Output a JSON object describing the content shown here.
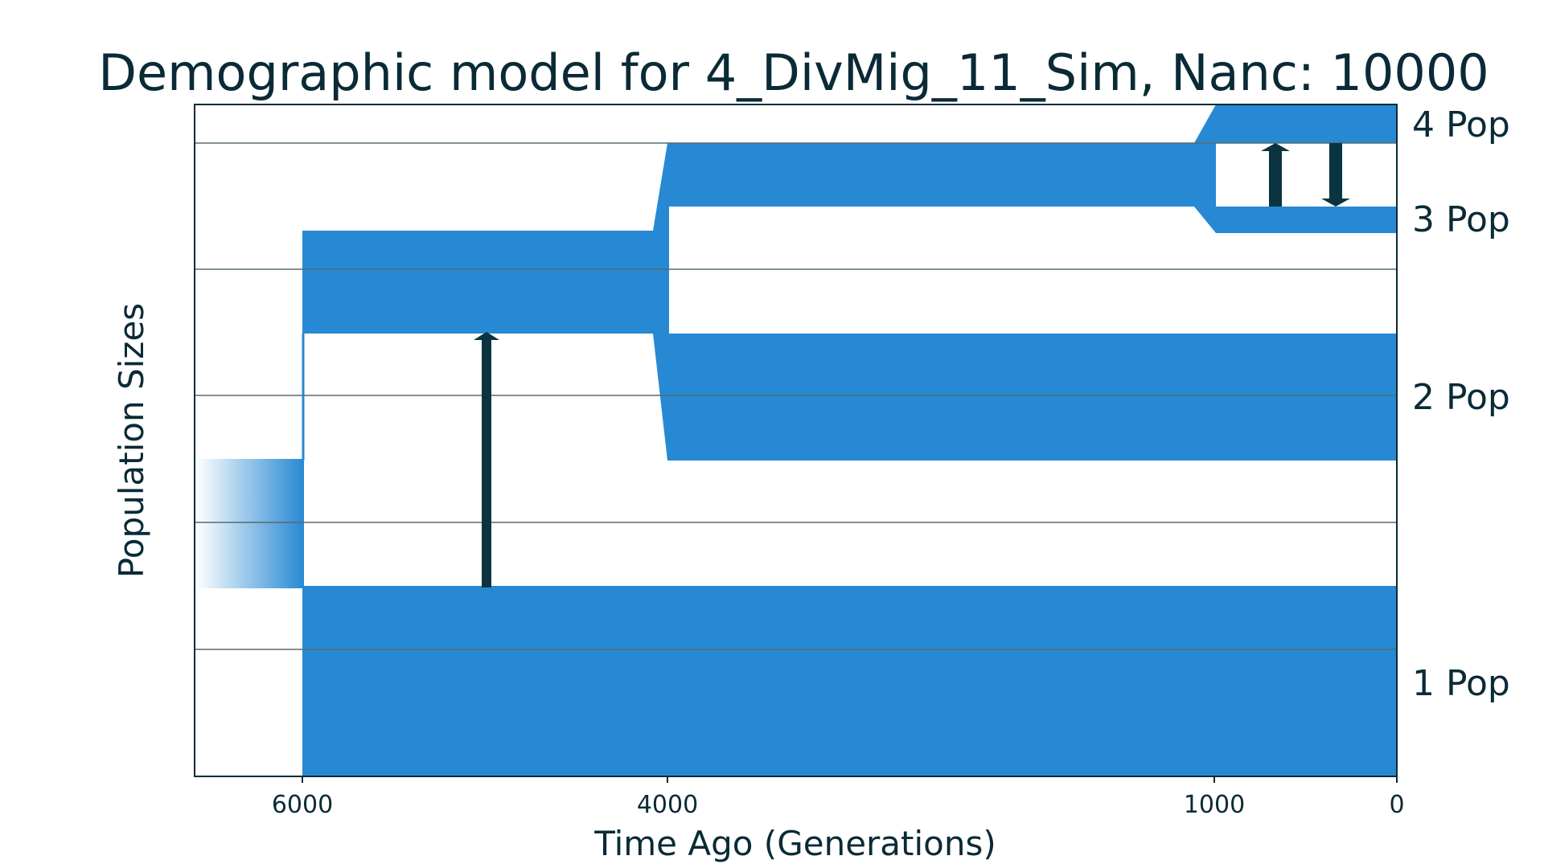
{
  "chart_data": {
    "type": "demographic-model",
    "title": "Demographic model for 4_DivMig_11_Sim, Nanc: 10000",
    "xlabel": "Time Ago (Generations)",
    "ylabel": "Population Sizes",
    "x_ticks": [
      {
        "value": 6000,
        "label": "6000"
      },
      {
        "value": 4000,
        "label": "4000"
      },
      {
        "value": 1000,
        "label": "1000"
      },
      {
        "value": 0,
        "label": "0"
      }
    ],
    "population_labels": [
      "4 Pop",
      "3 Pop",
      "2 Pop",
      "1 Pop"
    ],
    "events": [
      {
        "time": 6000,
        "type": "split",
        "from": "ancestral",
        "into": [
          "1 Pop",
          "2 Pop"
        ]
      },
      {
        "time": 4000,
        "type": "split",
        "from": "2 Pop",
        "into": [
          "2 Pop",
          "3 Pop"
        ]
      },
      {
        "time": 1000,
        "type": "split",
        "from": "3 Pop",
        "into": [
          "3 Pop",
          "4 Pop"
        ]
      }
    ],
    "migrations": [
      {
        "from": "1 Pop",
        "to": "2 Pop",
        "period": "6000-4000"
      },
      {
        "from": "3 Pop",
        "to": "4 Pop",
        "period": "1000-0"
      },
      {
        "from": "4 Pop",
        "to": "3 Pop",
        "period": "1000-0"
      }
    ],
    "colors": {
      "population": "#2789d3",
      "arrow": "#0a3540",
      "grid": "#566a70",
      "text": "#0a2a36",
      "frame": "#0a2a36"
    },
    "grid": true
  }
}
